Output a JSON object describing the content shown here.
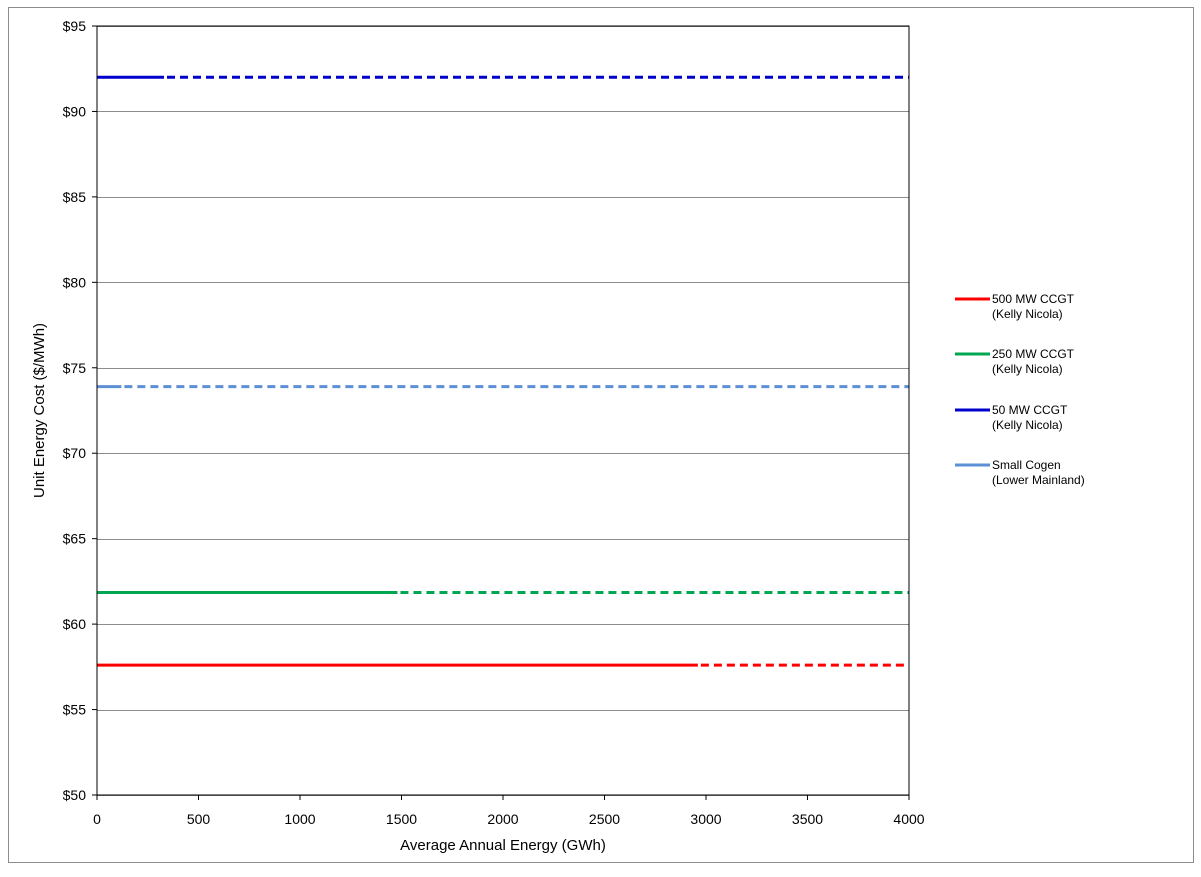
{
  "chart_data": {
    "type": "line",
    "title": "",
    "xlabel": "Average Annual Energy (GWh)",
    "ylabel": "Unit Energy Cost ($/MWh)",
    "xlim": [
      0,
      4000
    ],
    "ylim": [
      50,
      95
    ],
    "x_ticks": [
      0,
      500,
      1000,
      1500,
      2000,
      2500,
      3000,
      3500,
      4000
    ],
    "y_ticks": [
      {
        "value": 50,
        "label": "$50"
      },
      {
        "value": 55,
        "label": "$55"
      },
      {
        "value": 60,
        "label": "$60"
      },
      {
        "value": 65,
        "label": "$65"
      },
      {
        "value": 70,
        "label": "$70"
      },
      {
        "value": 75,
        "label": "$75"
      },
      {
        "value": 80,
        "label": "$80"
      },
      {
        "value": 85,
        "label": "$85"
      },
      {
        "value": 90,
        "label": "$90"
      },
      {
        "value": 95,
        "label": "$95"
      }
    ],
    "grid": "horizontal",
    "legend_position": "right",
    "series": [
      {
        "name_line1": "500 MW CCGT",
        "name_line2": "(Kelly Nicola)",
        "color": "#ff0000",
        "y": 57.6,
        "solid_x": [
          0,
          2960
        ],
        "dashed_x": [
          2960,
          4000
        ]
      },
      {
        "name_line1": "250 MW CCGT",
        "name_line2": "(Kelly Nicola)",
        "color": "#00a650",
        "y": 61.85,
        "solid_x": [
          0,
          1480
        ],
        "dashed_x": [
          1480,
          4000
        ]
      },
      {
        "name_line1": "50 MW CCGT",
        "name_line2": "(Kelly Nicola)",
        "color": "#0000cc",
        "y": 92.0,
        "solid_x": [
          0,
          330
        ],
        "dashed_x": [
          330,
          4000
        ]
      },
      {
        "name_line1": "Small Cogen",
        "name_line2": "(Lower Mainland)",
        "color": "#5b8fd6",
        "y": 73.9,
        "solid_x": [
          0,
          120
        ],
        "dashed_x": [
          120,
          4000
        ]
      }
    ]
  }
}
